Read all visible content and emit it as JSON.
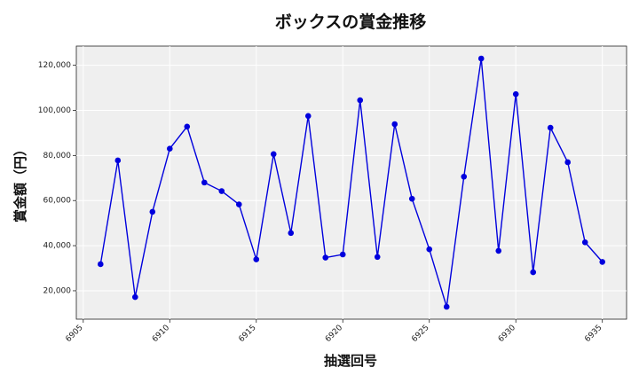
{
  "chart_data": {
    "type": "line",
    "title": "ボックスの賞金推移",
    "xlabel": "抽選回号",
    "ylabel": "賞金額（円）",
    "x": [
      6906,
      6907,
      6908,
      6909,
      6910,
      6911,
      6912,
      6913,
      6914,
      6915,
      6916,
      6917,
      6918,
      6919,
      6920,
      6921,
      6922,
      6923,
      6924,
      6925,
      6926,
      6927,
      6928,
      6929,
      6930,
      6931,
      6932,
      6933,
      6934,
      6935
    ],
    "series": [
      {
        "values": [
          31800,
          77800,
          17200,
          55000,
          83000,
          92800,
          68000,
          64200,
          58300,
          33900,
          80600,
          45600,
          97500,
          34700,
          36100,
          104500,
          35000,
          93900,
          60800,
          38400,
          12900,
          70600,
          123000,
          37700,
          107200,
          28200,
          92300,
          77000,
          41500,
          32800
        ],
        "color": "#0000dd"
      }
    ],
    "xticks": [
      6905,
      6910,
      6915,
      6920,
      6925,
      6930,
      6935
    ],
    "xtick_labels": [
      "6905",
      "6910",
      "6915",
      "6920",
      "6925",
      "6930",
      "6935"
    ],
    "yticks": [
      20000,
      40000,
      60000,
      80000,
      100000,
      120000
    ],
    "ytick_labels": [
      "20,000",
      "40,000",
      "60,000",
      "80,000",
      "100,000",
      "120,000"
    ],
    "xlim": [
      6904.6,
      6936.4
    ],
    "ylim": [
      7400,
      128500
    ],
    "grid": true,
    "background": "#efefef",
    "line_color": "#0000dd"
  }
}
